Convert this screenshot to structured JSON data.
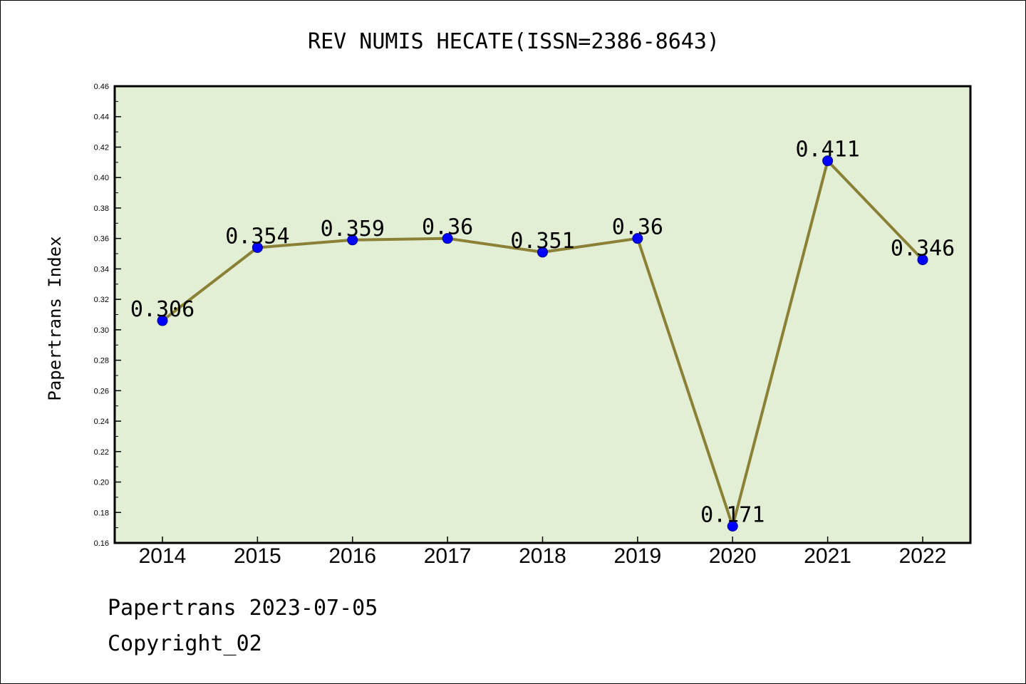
{
  "chart_data": {
    "type": "line",
    "title": "REV NUMIS HECATE(ISSN=2386-8643)",
    "xlabel": "",
    "ylabel": "Papertrans Index",
    "categories": [
      "2014",
      "2015",
      "2016",
      "2017",
      "2018",
      "2019",
      "2020",
      "2021",
      "2022"
    ],
    "series": [
      {
        "values": [
          0.306,
          0.354,
          0.359,
          0.36,
          0.351,
          0.36,
          0.171,
          0.411,
          0.346
        ],
        "labels": [
          "0.306",
          "0.354",
          "0.359",
          "0.36",
          "0.351",
          "0.36",
          "0.171",
          "0.411",
          "0.346"
        ]
      }
    ],
    "ylim": [
      0.16,
      0.46
    ],
    "yticks": [
      "0.16",
      "0.18",
      "0.20",
      "0.22",
      "0.24",
      "0.26",
      "0.28",
      "0.30",
      "0.32",
      "0.34",
      "0.36",
      "0.38",
      "0.40",
      "0.42",
      "0.44",
      "0.46"
    ],
    "grid": false,
    "legend": "none",
    "colors": {
      "plot_background": "#e2efd5",
      "line": "#8b8136",
      "marker": "#0000ff",
      "axes": "#000000"
    }
  },
  "footer": {
    "date_line": "Papertrans 2023-07-05",
    "copyright": "Copyright_02"
  }
}
